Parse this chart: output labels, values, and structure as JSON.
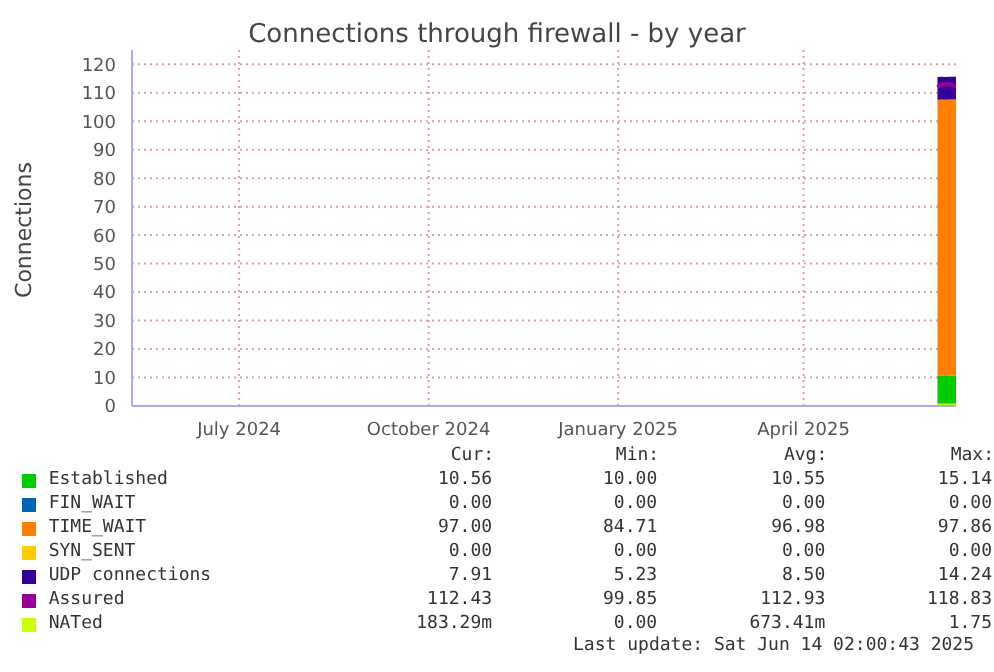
{
  "chart_data": {
    "type": "area",
    "title": "Connections through firewall - by year",
    "ylabel": "Connections",
    "x": [
      "2025-06-05",
      "2025-06-07",
      "2025-06-09",
      "2025-06-11",
      "2025-06-14"
    ],
    "xlim": [
      "2024-05-10",
      "2025-06-14"
    ],
    "xticks": [
      {
        "value": "2024-07-01",
        "label": "July 2024"
      },
      {
        "value": "2024-10-01",
        "label": "October 2024"
      },
      {
        "value": "2025-01-01",
        "label": "January 2025"
      },
      {
        "value": "2025-04-01",
        "label": "April 2025"
      }
    ],
    "ylim": [
      0,
      125
    ],
    "yticks": [
      0,
      10,
      20,
      30,
      40,
      50,
      60,
      70,
      80,
      90,
      100,
      110,
      120
    ],
    "stacked": true,
    "grid": true,
    "legend": "bottom",
    "series": [
      {
        "name": "Established",
        "color": "#00cc00",
        "values": [
          10.5,
          10.6,
          10.5,
          10.6,
          10.6
        ]
      },
      {
        "name": "FIN_WAIT",
        "color": "#0066b3",
        "values": [
          null,
          null,
          null,
          null,
          null
        ]
      },
      {
        "name": "TIME_WAIT",
        "color": "#ff8000",
        "values": [
          97,
          97,
          97,
          97,
          97
        ]
      },
      {
        "name": "SYN_SENT",
        "color": "#ffcc00",
        "values": [
          null,
          null,
          null,
          null,
          null
        ]
      },
      {
        "name": "UDP connections",
        "color": "#330099",
        "values": [
          8,
          8,
          8,
          8,
          8
        ]
      },
      {
        "name": "Assured",
        "color": "#990099",
        "type": "line",
        "values": [
          112,
          113,
          113,
          113,
          112
        ]
      },
      {
        "name": "NATed",
        "color": "#ccff00",
        "type": "line",
        "values": [
          0.2,
          0.2,
          0.2,
          0.2,
          0.2
        ]
      }
    ],
    "annotations": [
      "Cur:",
      "Min:",
      "Avg:",
      "Max:",
      "10.56",
      "10.00",
      "10.55",
      "15.14",
      "0.00",
      "0.00",
      "0.00",
      "0.00",
      "97.00",
      "84.71",
      "96.98",
      "97.86",
      "0.00",
      "0.00",
      "0.00",
      "0.00",
      "7.91",
      "5.23",
      "8.50",
      "14.24",
      "112.43",
      "99.85",
      "112.93",
      "118.83",
      "183.29m",
      "0.00",
      "673.41m",
      "1.75",
      "Last update: Sat Jun 14 02:00:43 2025"
    ]
  }
}
